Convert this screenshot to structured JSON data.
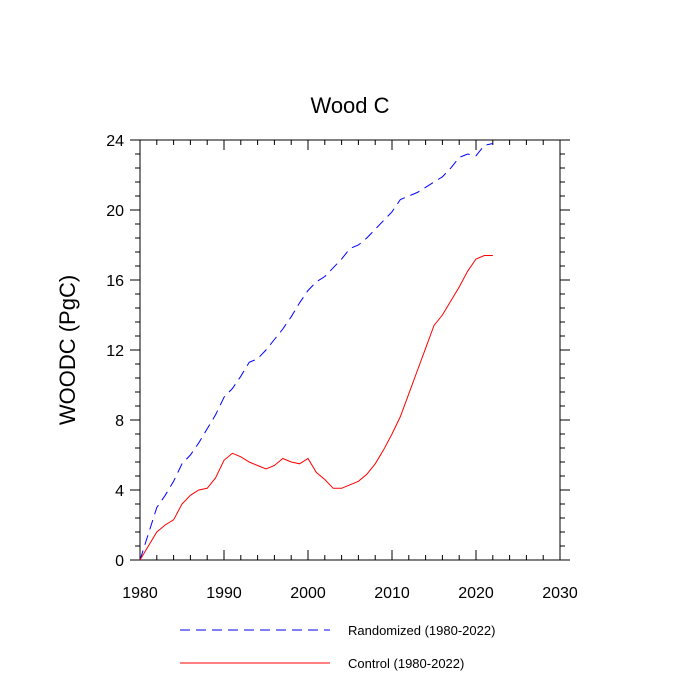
{
  "chart_data": {
    "type": "line",
    "title": "Wood C",
    "xlabel": "",
    "ylabel": "WOODC  (PgC)",
    "xlim": [
      1980,
      2030
    ],
    "ylim": [
      0,
      24
    ],
    "xticks": [
      1980,
      1990,
      2000,
      2010,
      2020,
      2030
    ],
    "yticks": [
      0,
      4,
      8,
      12,
      16,
      20,
      24
    ],
    "grid": false,
    "legend_position": "bottom",
    "series": [
      {
        "name": "Randomized (1980-2022)",
        "color": "#0000ff",
        "dash": "dashed",
        "x": [
          1980,
          1981,
          1982,
          1983,
          1984,
          1985,
          1986,
          1987,
          1988,
          1989,
          1990,
          1991,
          1992,
          1993,
          1994,
          1995,
          1996,
          1997,
          1998,
          1999,
          2000,
          2001,
          2002,
          2003,
          2004,
          2005,
          2006,
          2007,
          2008,
          2009,
          2010,
          2011,
          2012,
          2013,
          2014,
          2015,
          2016,
          2017,
          2018,
          2019,
          2020,
          2021,
          2022
        ],
        "values": [
          0,
          1.5,
          3.0,
          3.7,
          4.5,
          5.5,
          6.0,
          6.7,
          7.5,
          8.3,
          9.3,
          9.8,
          10.5,
          11.3,
          11.5,
          12.0,
          12.6,
          13.2,
          13.9,
          14.7,
          15.4,
          15.9,
          16.2,
          16.7,
          17.2,
          17.8,
          18.0,
          18.4,
          18.9,
          19.4,
          19.9,
          20.6,
          20.8,
          21.0,
          21.3,
          21.6,
          21.9,
          22.4,
          23.0,
          23.2,
          23.1,
          23.7,
          23.8
        ]
      },
      {
        "name": "Control (1980-2022)",
        "color": "#ff0000",
        "dash": "solid",
        "x": [
          1980,
          1981,
          1982,
          1983,
          1984,
          1985,
          1986,
          1987,
          1988,
          1989,
          1990,
          1991,
          1992,
          1993,
          1994,
          1995,
          1996,
          1997,
          1998,
          1999,
          2000,
          2001,
          2002,
          2003,
          2004,
          2005,
          2006,
          2007,
          2008,
          2009,
          2010,
          2011,
          2012,
          2013,
          2014,
          2015,
          2016,
          2017,
          2018,
          2019,
          2020,
          2021,
          2022
        ],
        "values": [
          0,
          0.8,
          1.6,
          2.0,
          2.3,
          3.2,
          3.7,
          4.0,
          4.1,
          4.7,
          5.7,
          6.1,
          5.9,
          5.6,
          5.4,
          5.2,
          5.4,
          5.8,
          5.6,
          5.5,
          5.8,
          5.0,
          4.6,
          4.1,
          4.1,
          4.3,
          4.5,
          4.9,
          5.5,
          6.3,
          7.2,
          8.2,
          9.5,
          10.8,
          12.1,
          13.4,
          14.0,
          14.8,
          15.6,
          16.5,
          17.2,
          17.4,
          17.4
        ]
      }
    ]
  }
}
